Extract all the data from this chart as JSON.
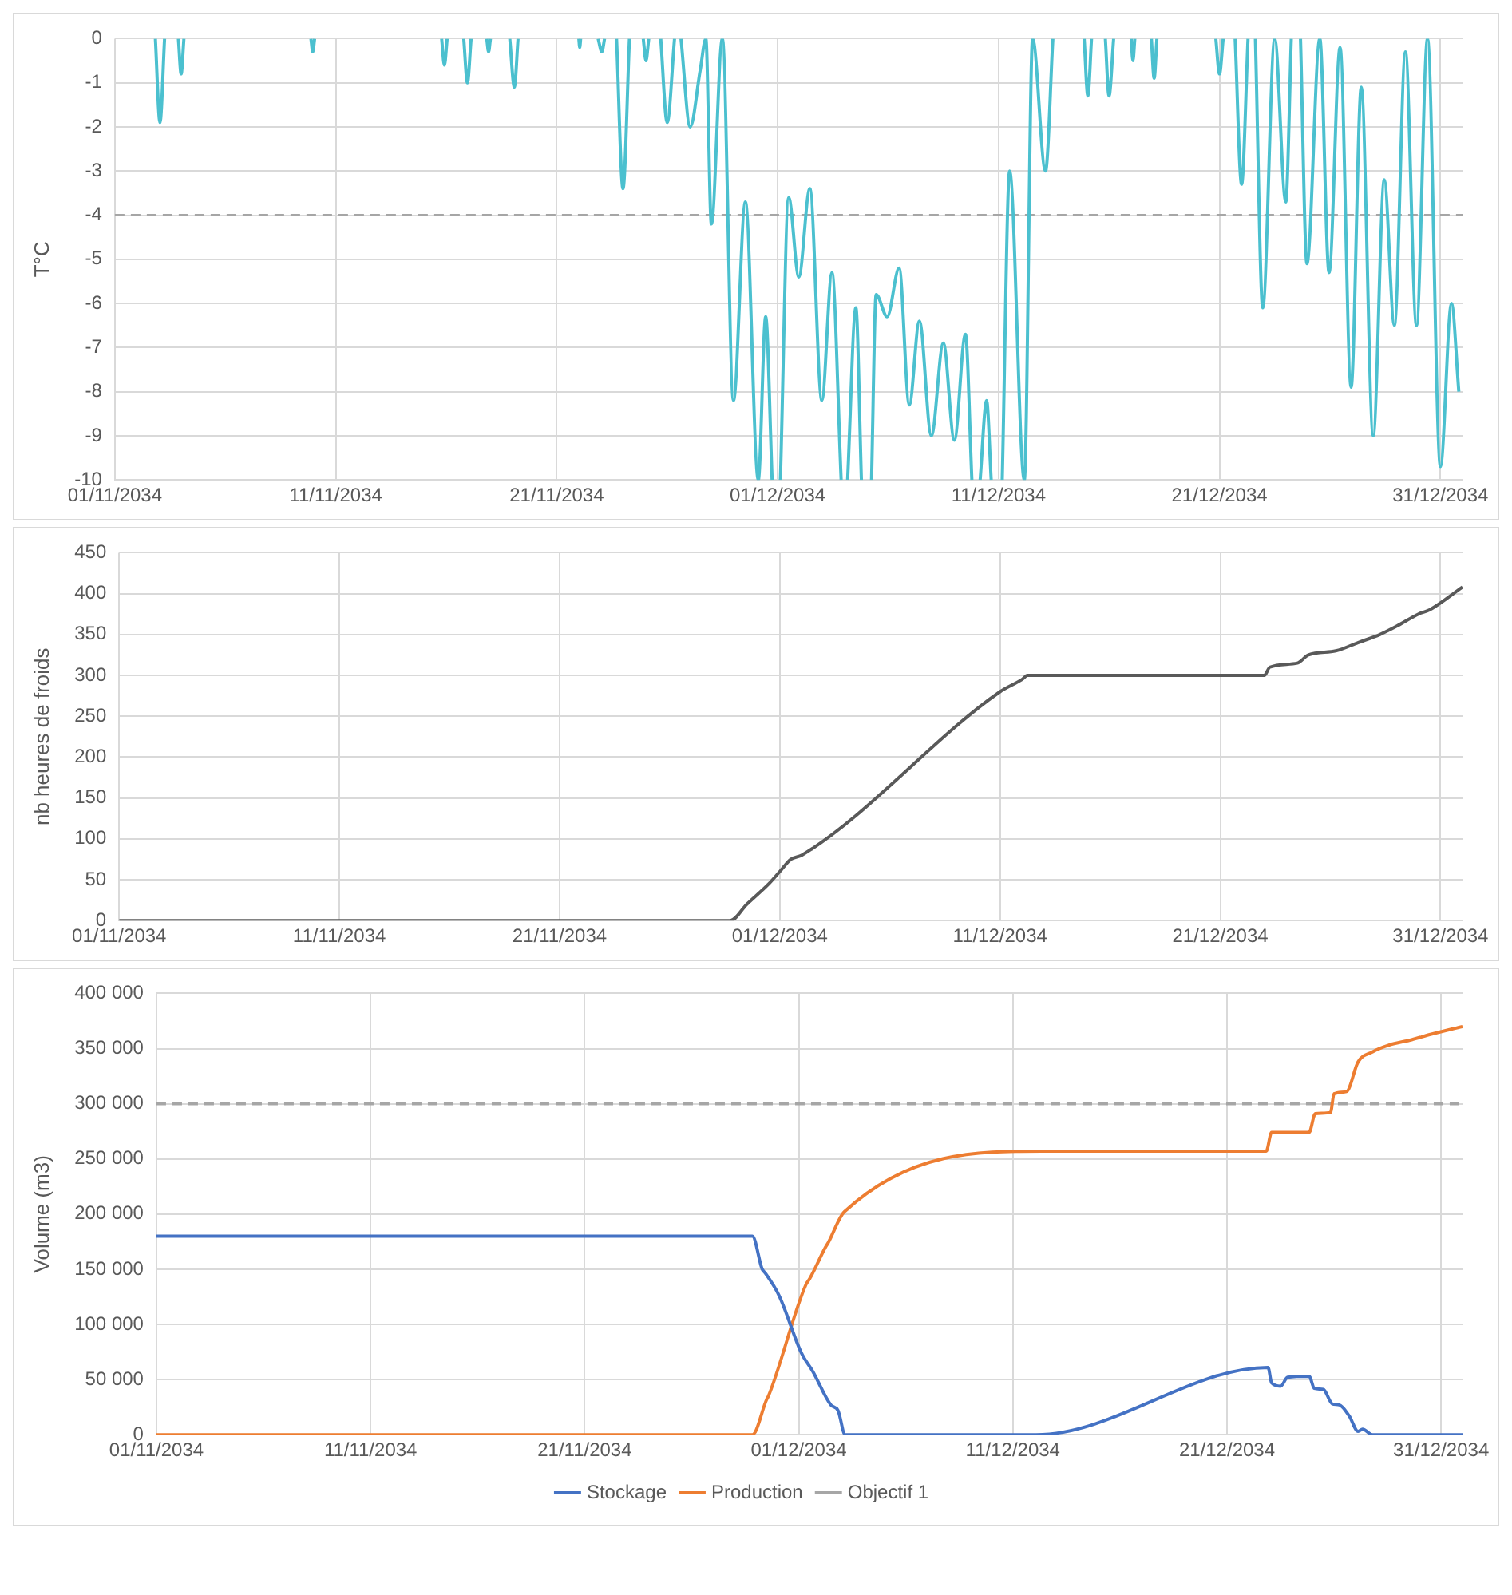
{
  "chart_data": [
    {
      "type": "line",
      "ylabel": "T°C",
      "xlim": [
        "2034-11-01",
        "2035-01-01"
      ],
      "ylim": [
        -10,
        0
      ],
      "grid": true,
      "xticks": [
        {
          "value": "2034-11-01",
          "label": "01/11/2034"
        },
        {
          "value": "2034-11-11",
          "label": "11/11/2034"
        },
        {
          "value": "2034-11-21",
          "label": "21/11/2034"
        },
        {
          "value": "2034-12-01",
          "label": "01/12/2034"
        },
        {
          "value": "2034-12-11",
          "label": "11/12/2034"
        },
        {
          "value": "2034-12-21",
          "label": "21/12/2034"
        },
        {
          "value": "2034-12-31",
          "label": "31/12/2034"
        }
      ],
      "yticks": [
        0,
        -1,
        -2,
        -3,
        -4,
        -5,
        -6,
        -7,
        -8,
        -9,
        -10
      ],
      "ref_lines": [
        {
          "axis": "y",
          "value": -4,
          "color": "#a6a6a6",
          "line_style": "dashed"
        }
      ],
      "series": [
        {
          "color": "#4bc0cf",
          "x": [
            "2034-11-02T20:00",
            "2034-11-03T01:00",
            "2034-11-03T06:00",
            "2034-11-03T12:00",
            "2034-11-03T21:00",
            "2034-11-04T00:00",
            "2034-11-04T03:00",
            "2034-11-06T00:00",
            "2034-11-09T21:00",
            "2034-11-09T23:00",
            "2034-11-10T01:00",
            "2034-11-12T00:00",
            "2034-11-15T19:00",
            "2034-11-15T22:00",
            "2034-11-16T01:00",
            "2034-11-16T12:00",
            "2034-11-16T19:00",
            "2034-11-16T23:00",
            "2034-11-17T03:00",
            "2034-11-17T12:00",
            "2034-11-17T20:00",
            "2034-11-17T22:00",
            "2034-11-18T00:00",
            "2034-11-18T12:00",
            "2034-11-18T21:00",
            "2034-11-19T02:00",
            "2034-11-19T06:00",
            "2034-11-20T00:00",
            "2034-11-22T00:00",
            "2034-11-22T01:00",
            "2034-11-22T02:00",
            "2034-11-22T12:00",
            "2034-11-22T21:00",
            "2034-11-23T01:00",
            "2034-11-23T04:00",
            "2034-11-23T12:00",
            "2034-11-23T17:00",
            "2034-11-24T00:00",
            "2034-11-24T07:00",
            "2034-11-24T16:00",
            "2034-11-24T22:00",
            "2034-11-25T01:00",
            "2034-11-25T04:00",
            "2034-11-25T10:00",
            "2034-11-25T17:00",
            "2034-11-26T00:00",
            "2034-11-26T08:00",
            "2034-11-26T12:00",
            "2034-11-26T15:00",
            "2034-11-27T01:00",
            "2034-11-27T12:00",
            "2034-11-27T18:00",
            "2034-11-28T00:00",
            "2034-11-28T12:00",
            "2034-11-29T00:00",
            "2034-11-29T13:00",
            "2034-11-30T03:00",
            "2034-11-30T11:00",
            "2034-11-30T18:00",
            "2034-11-30T22:00",
            "2034-12-01T03:00",
            "2034-12-01T12:00",
            "2034-12-01T23:00",
            "2034-12-02T11:00",
            "2034-12-03T00:00",
            "2034-12-03T11:00",
            "2034-12-03T21:00",
            "2034-12-04T00:00",
            "2034-12-04T04:00",
            "2034-12-04T13:00",
            "2034-12-04T19:00",
            "2034-12-05T00:00",
            "2034-12-05T06:00",
            "2034-12-05T11:00",
            "2034-12-05T23:00",
            "2034-12-06T12:00",
            "2034-12-06T23:00",
            "2034-12-07T10:00",
            "2034-12-07T23:00",
            "2034-12-08T12:00",
            "2034-12-09T00:00",
            "2034-12-09T12:00",
            "2034-12-09T19:00",
            "2034-12-10T00:00",
            "2034-12-10T04:00",
            "2034-12-10T11:00",
            "2034-12-10T16:00",
            "2034-12-10T20:00",
            "2034-12-11T04:00",
            "2034-12-11T12:00",
            "2034-12-12T04:00",
            "2034-12-12T13:00",
            "2034-12-13T03:00",
            "2034-12-13T11:00",
            "2034-12-14T00:00",
            "2034-12-14T21:00",
            "2034-12-15T01:00",
            "2034-12-15T05:00",
            "2034-12-15T12:00",
            "2034-12-15T20:00",
            "2034-12-16T00:00",
            "2034-12-16T05:00",
            "2034-12-16T12:00",
            "2034-12-17T00:00",
            "2034-12-17T02:00",
            "2034-12-17T04:00",
            "2034-12-17T12:00",
            "2034-12-17T22:00",
            "2034-12-18T01:00",
            "2034-12-18T04:00",
            "2034-12-19T00:00",
            "2034-12-20T20:00",
            "2034-12-21T00:00",
            "2034-12-21T04:00",
            "2034-12-21T10:00",
            "2034-12-21T17:00",
            "2034-12-22T00:00",
            "2034-12-22T07:00",
            "2034-12-22T11:00",
            "2034-12-22T15:00",
            "2034-12-22T23:00",
            "2034-12-23T12:00",
            "2034-12-24T00:00",
            "2034-12-24T06:00",
            "2034-12-24T11:00",
            "2034-12-24T16:00",
            "2034-12-24T23:00",
            "2034-12-25T13:00",
            "2034-12-25T23:00",
            "2034-12-26T11:00",
            "2034-12-26T23:00",
            "2034-12-27T10:00",
            "2034-12-27T23:00",
            "2034-12-28T11:00",
            "2034-12-28T22:00",
            "2034-12-29T10:00",
            "2034-12-29T22:00",
            "2034-12-30T10:00",
            "2034-12-31T00:00",
            "2034-12-31T12:00",
            "2034-12-31T20:00"
          ],
          "values": [
            0,
            -1.9,
            0,
            null,
            0,
            -0.8,
            0,
            null,
            0,
            -0.3,
            0,
            null,
            0,
            -0.6,
            0,
            null,
            0,
            -1,
            0,
            null,
            0,
            -0.3,
            0,
            null,
            0,
            -1.1,
            0,
            null,
            0,
            -0.2,
            0,
            null,
            0,
            -0.3,
            0,
            null,
            0,
            -3.4,
            0,
            null,
            0,
            -0.5,
            0,
            null,
            0,
            -1.9,
            0,
            null,
            0,
            -2,
            -0.7,
            0,
            -4.2,
            0,
            -8.2,
            -3.7,
            -10,
            -6.3,
            -10,
            null,
            -10,
            -3.6,
            -5.4,
            -3.4,
            -8.2,
            -5.3,
            -10,
            null,
            -10,
            -6.1,
            -10,
            null,
            -10,
            -5.8,
            -6.3,
            -5.2,
            -8.3,
            -6.4,
            -9,
            -6.9,
            -9.1,
            -6.7,
            -10,
            null,
            -10,
            -8.2,
            -10,
            null,
            -10,
            -3,
            -10,
            0,
            -3,
            0,
            null,
            0,
            -1.3,
            0,
            null,
            0,
            -1.3,
            0,
            null,
            0,
            -0.5,
            0,
            null,
            0,
            -0.9,
            0,
            null,
            0,
            -0.8,
            0,
            null,
            0,
            -3.3,
            0,
            null,
            0,
            -6.1,
            0,
            -3.7,
            0,
            null,
            0,
            -5.1,
            0,
            -5.3,
            -0.2,
            -7.9,
            -1.1,
            -9,
            -3.2,
            -6.5,
            -0.3,
            -6.5,
            0,
            -9.7,
            -6,
            -8
          ]
        }
      ]
    },
    {
      "type": "line",
      "ylabel": "nb heures de froids",
      "xlim": [
        "2034-11-01",
        "2035-01-01"
      ],
      "ylim": [
        0,
        450
      ],
      "grid": true,
      "xticks": [
        {
          "value": "2034-11-01",
          "label": "01/11/2034"
        },
        {
          "value": "2034-11-11",
          "label": "11/11/2034"
        },
        {
          "value": "2034-11-21",
          "label": "21/11/2034"
        },
        {
          "value": "2034-12-01",
          "label": "01/12/2034"
        },
        {
          "value": "2034-12-11",
          "label": "11/12/2034"
        },
        {
          "value": "2034-12-21",
          "label": "21/12/2034"
        },
        {
          "value": "2034-12-31",
          "label": "31/12/2034"
        }
      ],
      "yticks": [
        0,
        50,
        100,
        150,
        200,
        250,
        300,
        350,
        400,
        450
      ],
      "series": [
        {
          "color": "#595959",
          "x": [
            "2034-11-01T00:00",
            "2034-11-28T18:00",
            "2034-11-29T12:00",
            "2034-11-30T12:00",
            "2034-12-01T00:00",
            "2034-12-01T12:00",
            "2034-12-02T00:00",
            "2034-12-11T00:00",
            "2034-12-12T00:00",
            "2034-12-12T06:00",
            "2034-12-23T00:00",
            "2034-12-23T06:00",
            "2034-12-24T12:00",
            "2034-12-25T00:00",
            "2034-12-26T06:00",
            "2034-12-27T06:00",
            "2034-12-28T06:00",
            "2034-12-29T00:00",
            "2034-12-30T00:00",
            "2034-12-30T12:00",
            "2035-01-01T00:00"
          ],
          "values": [
            0,
            0,
            20,
            45,
            60,
            75,
            80,
            280,
            295,
            300,
            300,
            310,
            315,
            325,
            330,
            340,
            350,
            360,
            375,
            380,
            408
          ]
        }
      ]
    },
    {
      "type": "line",
      "ylabel": "Volume (m3)",
      "xlim": [
        "2034-11-01",
        "2035-01-01"
      ],
      "ylim": [
        0,
        400000
      ],
      "grid": true,
      "legend": "bottom",
      "xticks": [
        {
          "value": "2034-11-01",
          "label": "01/11/2034"
        },
        {
          "value": "2034-11-11",
          "label": "11/11/2034"
        },
        {
          "value": "2034-11-21",
          "label": "21/11/2034"
        },
        {
          "value": "2034-12-01",
          "label": "01/12/2034"
        },
        {
          "value": "2034-12-11",
          "label": "11/12/2034"
        },
        {
          "value": "2034-12-21",
          "label": "21/12/2034"
        },
        {
          "value": "2034-12-31",
          "label": "31/12/2034"
        }
      ],
      "yticks": [
        0,
        {
          "value": 50000,
          "label": "50 000"
        },
        {
          "value": 100000,
          "label": "100 000"
        },
        {
          "value": 150000,
          "label": "150 000"
        },
        {
          "value": 200000,
          "label": "200 000"
        },
        {
          "value": 250000,
          "label": "250 000"
        },
        {
          "value": 300000,
          "label": "300 000"
        },
        {
          "value": 350000,
          "label": "350 000"
        },
        {
          "value": 400000,
          "label": "400 000"
        }
      ],
      "series": [
        {
          "name": "Stockage",
          "color": "#4472c4",
          "x": [
            "2034-11-01T00:00",
            "2034-11-28T20:00",
            "2034-11-29T07:00",
            "2034-11-29T10:00",
            "2034-11-30T02:00",
            "2034-12-01T03:00",
            "2034-12-01T16:00",
            "2034-12-02T12:00",
            "2034-12-02T20:00",
            "2034-12-03T04:00",
            "2034-12-12T02:00",
            "2034-12-22T22:00",
            "2034-12-23T02:00",
            "2034-12-23T12:00",
            "2034-12-23T20:00",
            "2034-12-24T20:00",
            "2034-12-25T02:00",
            "2034-12-25T12:00",
            "2034-12-25T22:00",
            "2034-12-26T06:00",
            "2034-12-26T17:00",
            "2034-12-27T03:00",
            "2034-12-27T08:00",
            "2034-12-27T19:00",
            "2035-01-01T00:00"
          ],
          "values": [
            180000,
            180000,
            150000,
            147000,
            126000,
            74000,
            57000,
            27000,
            22000,
            0,
            0,
            61000,
            47000,
            44000,
            52000,
            53000,
            42000,
            41000,
            28000,
            27000,
            17000,
            3000,
            5000,
            0,
            0
          ]
        },
        {
          "name": "Production",
          "color": "#ed7d31",
          "x": [
            "2034-11-01T00:00",
            "2034-11-28T20:00",
            "2034-11-29T12:00",
            "2034-11-29T14:00",
            "2034-12-01T08:00",
            "2034-12-01T12:00",
            "2034-12-02T06:00",
            "2034-12-02T09:00",
            "2034-12-03T03:00",
            "2034-12-12T08:00",
            "2034-12-22T20:00",
            "2034-12-23T02:00",
            "2034-12-24T20:00",
            "2034-12-25T03:00",
            "2034-12-25T20:00",
            "2034-12-26T00:00",
            "2034-12-26T14:00",
            "2034-12-27T03:00",
            "2034-12-27T19:00",
            "2034-12-28T13:00",
            "2034-12-29T15:00",
            "2034-12-30T13:00",
            "2035-01-01T00:00"
          ],
          "values": [
            0,
            0,
            32000,
            35000,
            136000,
            141000,
            170000,
            174000,
            202000,
            257000,
            257000,
            274000,
            274000,
            291000,
            292000,
            309000,
            311000,
            338000,
            347000,
            353000,
            358000,
            363000,
            370000
          ]
        },
        {
          "name": "Objectif 1",
          "color": "#a6a6a6",
          "line_style": "dashed",
          "x": [
            "2034-11-01T00:00",
            "2035-01-01T00:00"
          ],
          "values": [
            300000,
            300000
          ]
        }
      ]
    }
  ]
}
